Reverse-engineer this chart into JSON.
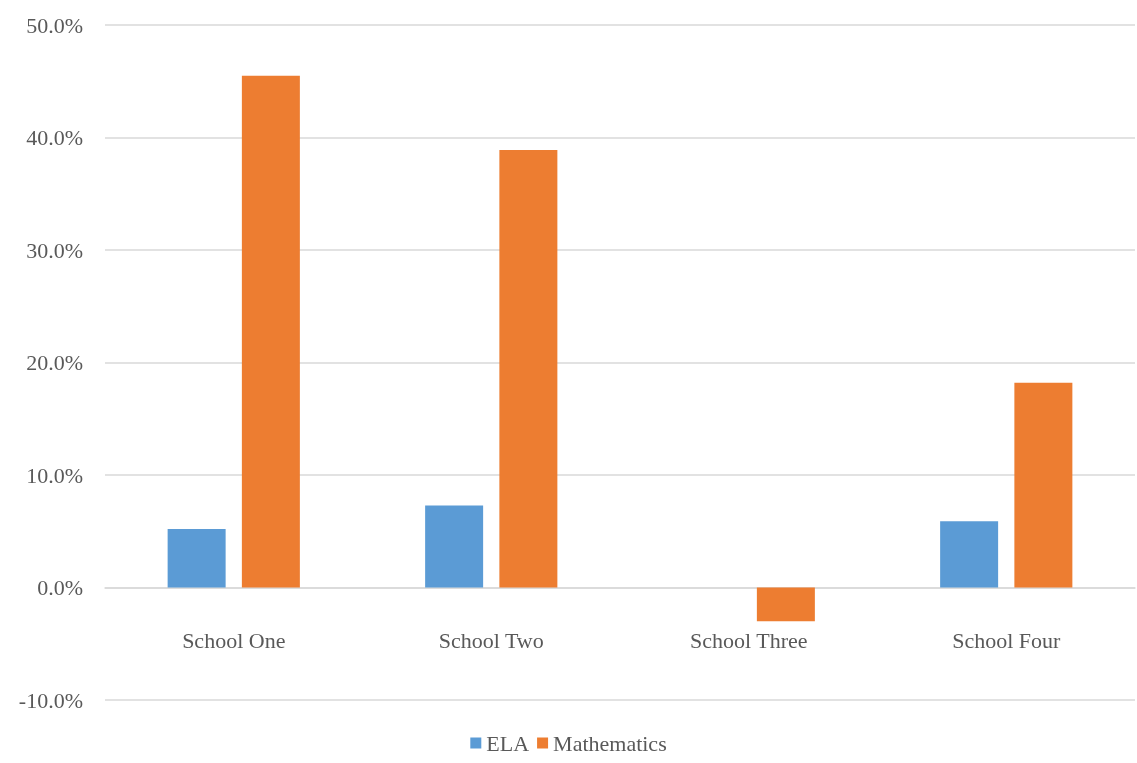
{
  "chart_data": {
    "type": "bar",
    "categories": [
      "School One",
      "School Two",
      "School Three",
      "School Four"
    ],
    "series": [
      {
        "name": "ELA",
        "color": "#5b9bd5",
        "values": [
          5.2,
          7.3,
          0,
          5.9
        ]
      },
      {
        "name": "Mathematics",
        "color": "#ed7d31",
        "values": [
          45.5,
          38.9,
          -3.0,
          18.2
        ]
      }
    ],
    "ylim": [
      -10,
      50
    ],
    "yticks": [
      {
        "value": -10,
        "label": "-10.0%"
      },
      {
        "value": 0,
        "label": "0.0%"
      },
      {
        "value": 10,
        "label": "10.0%"
      },
      {
        "value": 20,
        "label": "20.0%"
      },
      {
        "value": 30,
        "label": "30.0%"
      },
      {
        "value": 40,
        "label": "40.0%"
      },
      {
        "value": 50,
        "label": "50.0%"
      }
    ],
    "grid": "y",
    "legend": "bottom"
  }
}
